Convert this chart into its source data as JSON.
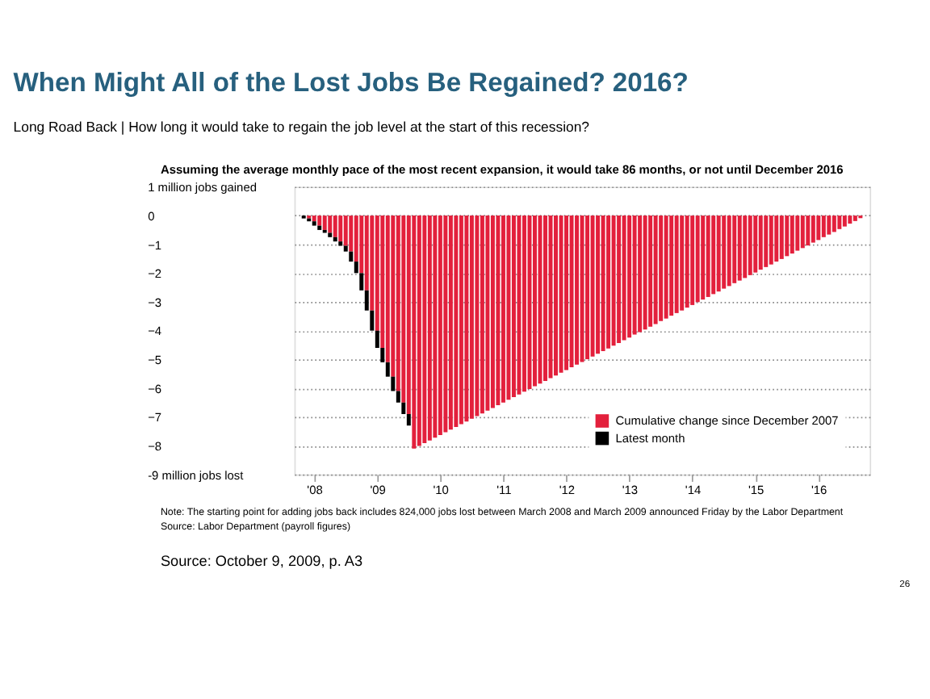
{
  "chart_data": {
    "type": "bar",
    "title": "When Might All of the Lost Jobs Be Regained? 2016?",
    "subtitle": "Long Road Back | How long it would take to regain the job level at the start of this recession?",
    "annotations": [
      "Assuming the average monthly pace of the most recent expansion, it would take 86 months, or not until December 2016",
      "Note: The starting point for adding jobs back includes 824,000 jobs lost between March 2008 and March 2009 announced Friday by the Labor Department",
      "Source: Labor Department (payroll figures)",
      "Source: October 9, 2009, p. A3",
      "26"
    ],
    "categories": [
      null,
      null,
      "'08",
      null,
      null,
      null,
      null,
      null,
      null,
      null,
      null,
      null,
      null,
      null,
      "'09",
      null,
      null,
      null,
      null,
      null,
      null,
      null,
      null,
      null,
      null,
      null,
      "'10",
      null,
      null,
      null,
      null,
      null,
      null,
      null,
      null,
      null,
      null,
      null,
      "'11",
      null,
      null,
      null,
      null,
      null,
      null,
      null,
      null,
      null,
      null,
      null,
      "'12",
      null,
      null,
      null,
      null,
      null,
      null,
      null,
      null,
      null,
      null,
      null,
      "'13",
      null,
      null,
      null,
      null,
      null,
      null,
      null,
      null,
      null,
      null,
      null,
      "'14",
      null,
      null,
      null,
      null,
      null,
      null,
      null,
      null,
      null,
      null,
      null,
      "'15",
      null,
      null,
      null,
      null,
      null,
      null,
      null,
      null,
      null,
      null,
      null,
      "'16",
      null,
      null,
      null,
      null,
      null,
      null,
      null,
      null
    ],
    "stacked": true,
    "series": [
      {
        "name": "Cumulative change since December 2007",
        "color": "#e3203c",
        "values": [
          null,
          -0.1,
          -0.2,
          -0.35,
          -0.5,
          -0.6,
          -0.75,
          -0.9,
          -1.05,
          -1.25,
          -1.6,
          -2.0,
          -2.6,
          -3.3,
          -4.0,
          -4.6,
          -5.1,
          -5.6,
          -6.1,
          -6.5,
          -6.9,
          -8.1,
          -8.01,
          -7.91,
          -7.82,
          -7.72,
          -7.63,
          -7.53,
          -7.44,
          -7.35,
          -7.25,
          -7.16,
          -7.06,
          -6.97,
          -6.88,
          -6.78,
          -6.69,
          -6.59,
          -6.5,
          -6.4,
          -6.31,
          -6.22,
          -6.12,
          -6.03,
          -5.93,
          -5.84,
          -5.75,
          -5.65,
          -5.56,
          -5.46,
          -5.37,
          -5.27,
          -5.18,
          -5.09,
          -4.99,
          -4.9,
          -4.8,
          -4.71,
          -4.62,
          -4.52,
          -4.43,
          -4.33,
          -4.24,
          -4.14,
          -4.05,
          -3.96,
          -3.86,
          -3.77,
          -3.67,
          -3.58,
          -3.48,
          -3.39,
          -3.3,
          -3.2,
          -3.11,
          -3.01,
          -2.92,
          -2.83,
          -2.73,
          -2.64,
          -2.54,
          -2.45,
          -2.35,
          -2.26,
          -2.17,
          -2.07,
          -1.98,
          -1.88,
          -1.79,
          -1.7,
          -1.6,
          -1.51,
          -1.41,
          -1.32,
          -1.22,
          -1.13,
          -1.04,
          -0.94,
          -0.85,
          -0.75,
          -0.66,
          -0.57,
          -0.47,
          -0.38,
          -0.28,
          -0.19,
          -0.09
        ]
      },
      {
        "name": "Latest month",
        "color": "#000000",
        "values": [
          -0.1,
          -0.1,
          -0.15,
          -0.15,
          -0.1,
          -0.15,
          -0.15,
          -0.15,
          -0.2,
          -0.35,
          -0.4,
          -0.6,
          -0.7,
          -0.7,
          -0.6,
          -0.5,
          -0.5,
          -0.5,
          -0.4,
          -0.4,
          -0.4,
          null,
          null,
          null,
          null,
          null,
          null,
          null,
          null,
          null,
          null,
          null,
          null,
          null,
          null,
          null,
          null,
          null,
          null,
          null,
          null,
          null,
          null,
          null,
          null,
          null,
          null,
          null,
          null,
          null,
          null,
          null,
          null,
          null,
          null,
          null,
          null,
          null,
          null,
          null,
          null,
          null,
          null,
          null,
          null,
          null,
          null,
          null,
          null,
          null,
          null,
          null,
          null,
          null,
          null,
          null,
          null,
          null,
          null,
          null,
          null,
          null,
          null,
          null,
          null,
          null,
          null,
          null,
          null,
          null,
          null,
          null,
          null,
          null,
          null,
          null,
          null,
          null,
          null,
          null,
          null,
          null,
          null,
          null,
          null,
          null,
          null
        ]
      }
    ],
    "ylim": [
      -9,
      1
    ],
    "yticks": [
      {
        "value": 1,
        "label": "1 million jobs gained"
      },
      0,
      -1,
      -2,
      -3,
      -4,
      -5,
      -6,
      -7,
      -8,
      {
        "value": -9,
        "label": "-9 million jobs lost"
      }
    ],
    "grid": "y",
    "legend": "bottom right"
  }
}
